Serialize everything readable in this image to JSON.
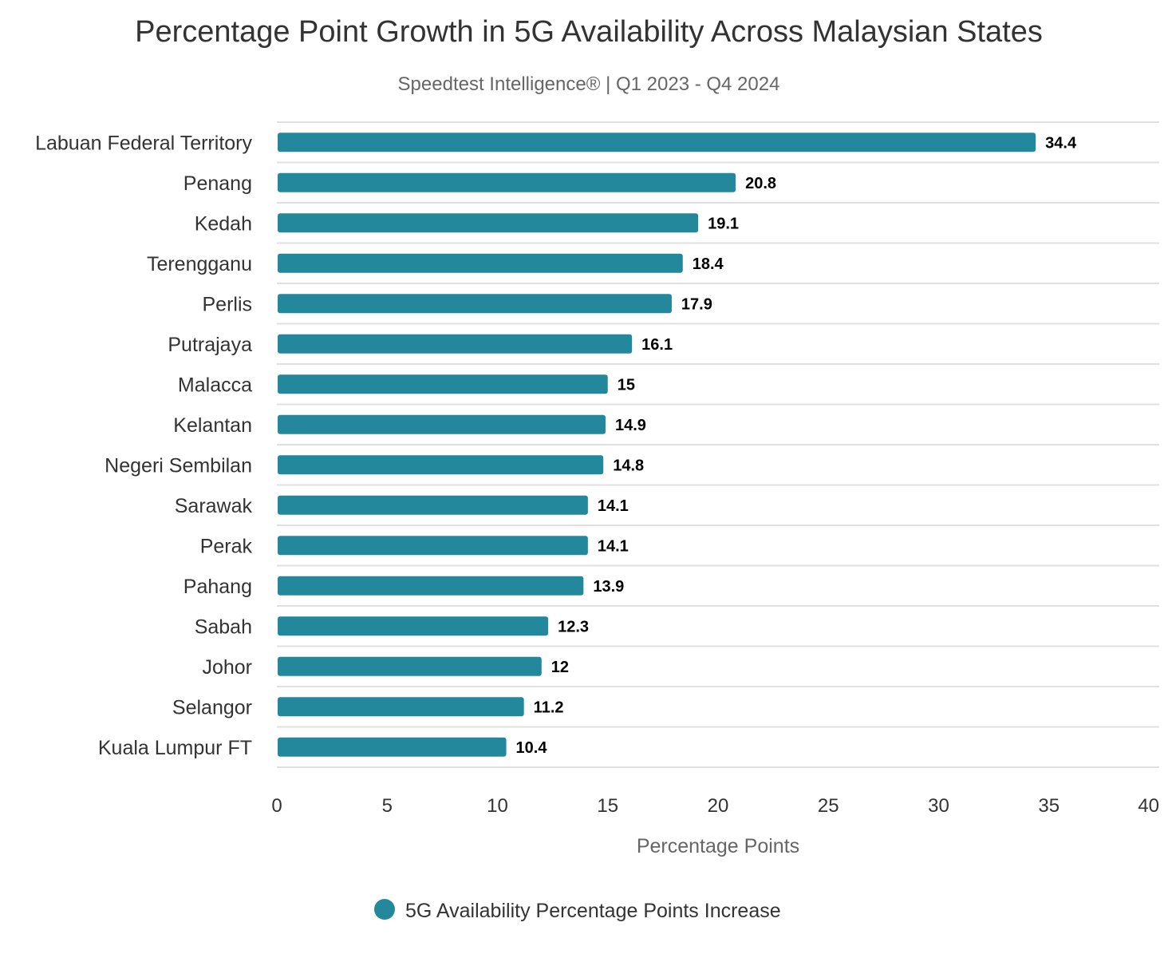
{
  "chart_data": {
    "type": "bar",
    "orientation": "horizontal",
    "title": "Percentage Point Growth in 5G Availability Across Malaysian States",
    "subtitle": "Speedtest Intelligence® | Q1 2023 - Q4 2024",
    "xlabel": "Percentage Points",
    "ylabel": "",
    "xlim": [
      0,
      40
    ],
    "xticks": [
      0,
      5,
      10,
      15,
      20,
      25,
      30,
      35,
      40
    ],
    "grid": "horizontal separators",
    "legend_position": "bottom",
    "color": "#24889c",
    "categories": [
      "Labuan Federal Territory",
      "Penang",
      "Kedah",
      "Terengganu",
      "Perlis",
      "Putrajaya",
      "Malacca",
      "Kelantan",
      "Negeri Sembilan",
      "Sarawak",
      "Perak",
      "Pahang",
      "Sabah",
      "Johor",
      "Selangor",
      "Kuala Lumpur FT"
    ],
    "series": [
      {
        "name": "5G Availability Percentage Points Increase",
        "values": [
          34.4,
          20.8,
          19.1,
          18.4,
          17.9,
          16.1,
          15,
          14.9,
          14.8,
          14.1,
          14.1,
          13.9,
          12.3,
          12,
          11.2,
          10.4
        ]
      }
    ]
  }
}
